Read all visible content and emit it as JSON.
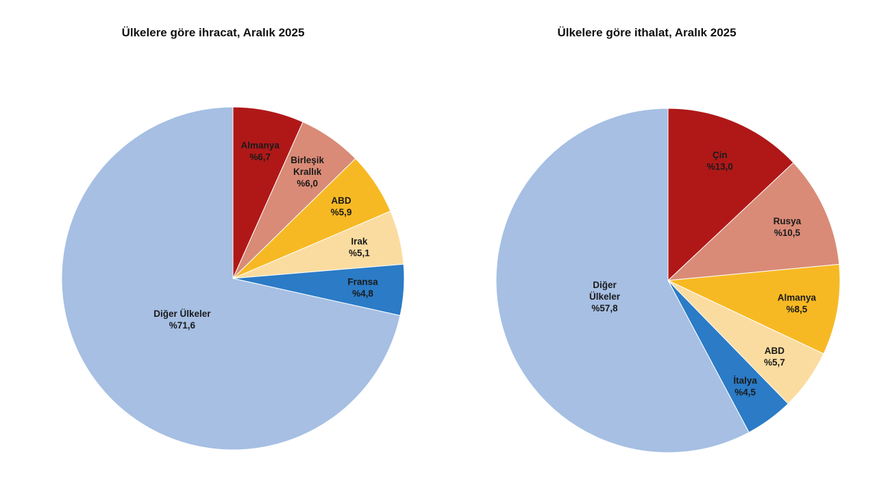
{
  "chart_data": [
    {
      "type": "pie",
      "title": "Ülkelere göre ihracat, Aralık 2025",
      "start": "top",
      "direction": "clockwise",
      "slices": [
        {
          "label": [
            "Almanya"
          ],
          "value": 6.7,
          "text": "%6,7",
          "color": "#b01818"
        },
        {
          "label": [
            "Birleşik",
            "Krallık"
          ],
          "value": 6.0,
          "text": "%6,0",
          "color": "#d98b77"
        },
        {
          "label": [
            "ABD"
          ],
          "value": 5.9,
          "text": "%5,9",
          "color": "#f7b923"
        },
        {
          "label": [
            "Irak"
          ],
          "value": 5.1,
          "text": "%5,1",
          "color": "#fbdca0"
        },
        {
          "label": [
            "Fransa"
          ],
          "value": 4.8,
          "text": "%4,8",
          "color": "#2b7bc6"
        },
        {
          "label": [
            "Diğer Ülkeler"
          ],
          "value": 71.6,
          "text": "%71,6",
          "color": "#a6bfe3"
        }
      ]
    },
    {
      "type": "pie",
      "title": "Ülkelere göre ithalat, Aralık 2025",
      "start": "top",
      "direction": "clockwise",
      "slices": [
        {
          "label": [
            "Çin"
          ],
          "value": 13.0,
          "text": "%13,0",
          "color": "#b01818"
        },
        {
          "label": [
            "Rusya"
          ],
          "value": 10.5,
          "text": "%10,5",
          "color": "#d98b77"
        },
        {
          "label": [
            "Almanya"
          ],
          "value": 8.5,
          "text": "%8,5",
          "color": "#f7b923"
        },
        {
          "label": [
            "ABD"
          ],
          "value": 5.7,
          "text": "%5,7",
          "color": "#fbdca0"
        },
        {
          "label": [
            "İtalya"
          ],
          "value": 4.5,
          "text": "%4,5",
          "color": "#2b7bc6"
        },
        {
          "label": [
            "Diğer",
            "Ülkeler"
          ],
          "value": 57.8,
          "text": "%57,8",
          "color": "#a6bfe3"
        }
      ]
    }
  ]
}
